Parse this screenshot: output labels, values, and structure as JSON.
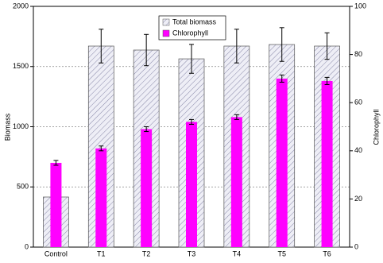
{
  "chart_data": {
    "type": "bar",
    "y_label": "Biomass",
    "y2_label": "Chlorophyll",
    "categories": [
      "Control",
      "T1",
      "T2",
      "T3",
      "T4",
      "T5",
      "T6"
    ],
    "series": [
      {
        "name": "Total biomass",
        "color": "#d8d8e8",
        "values": [
          416,
          1670,
          1637,
          1564,
          1670,
          1683,
          1670
        ],
        "errors": [
          0,
          140,
          130,
          120,
          140,
          140,
          110
        ]
      },
      {
        "name": "Chlorophyll",
        "color": "#ff00ff",
        "axis": "y2",
        "values": [
          35,
          41,
          49,
          52,
          54,
          70,
          69
        ],
        "errors": [
          1,
          1,
          1,
          1,
          1,
          1.5,
          1.5
        ]
      }
    ],
    "ylim": [
      0,
      2000
    ],
    "yticks": [
      0,
      500,
      1000,
      1500,
      2000
    ],
    "y2lim": [
      0,
      100
    ],
    "y2ticks": [
      0,
      20,
      40,
      60,
      80,
      100
    ],
    "grid": true
  }
}
